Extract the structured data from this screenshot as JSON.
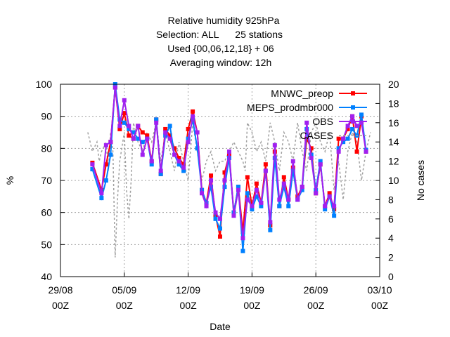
{
  "chart_data": {
    "type": "line",
    "title": [
      "Relative humidity 925hPa",
      "Selection: ALL      25 stations",
      "Used {00,06,12,18} + 06",
      "Averaging window: 12h"
    ],
    "xlabel": "Date",
    "ylabel": "%",
    "y2label": "No cases",
    "ylim": [
      40,
      100
    ],
    "y2lim": [
      0,
      20
    ],
    "xlim": [
      "2023-08-29T00:00",
      "2023-10-03T00:00"
    ],
    "x_ticks": [
      {
        "date": "2023-08-29T00:00",
        "line1": "29/08",
        "line2": "00Z"
      },
      {
        "date": "2023-09-05T00:00",
        "line1": "05/09",
        "line2": "00Z"
      },
      {
        "date": "2023-09-12T00:00",
        "line1": "12/09",
        "line2": "00Z"
      },
      {
        "date": "2023-09-19T00:00",
        "line1": "19/09",
        "line2": "00Z"
      },
      {
        "date": "2023-09-26T00:00",
        "line1": "26/09",
        "line2": "00Z"
      },
      {
        "date": "2023-10-03T00:00",
        "line1": "03/10",
        "line2": "00Z"
      }
    ],
    "y_ticks": [
      40,
      50,
      60,
      70,
      80,
      90,
      100
    ],
    "y2_ticks": [
      0,
      2,
      4,
      6,
      8,
      10,
      12,
      14,
      16,
      18,
      20
    ],
    "grid": true,
    "legend_position": "top-right",
    "series": [
      {
        "name": "MNWC_preop",
        "color": "#ff0000",
        "marker": "square",
        "axis": "y",
        "x": [
          "2023-09-01T12:00",
          "2023-09-02T12:00",
          "2023-09-03T00:00",
          "2023-09-03T12:00",
          "2023-09-04T00:00",
          "2023-09-04T12:00",
          "2023-09-05T00:00",
          "2023-09-05T12:00",
          "2023-09-06T00:00",
          "2023-09-06T12:00",
          "2023-09-07T00:00",
          "2023-09-07T12:00",
          "2023-09-08T00:00",
          "2023-09-08T12:00",
          "2023-09-09T00:00",
          "2023-09-09T12:00",
          "2023-09-10T00:00",
          "2023-09-10T12:00",
          "2023-09-11T00:00",
          "2023-09-11T12:00",
          "2023-09-12T00:00",
          "2023-09-12T12:00",
          "2023-09-13T00:00",
          "2023-09-13T12:00",
          "2023-09-14T00:00",
          "2023-09-14T12:00",
          "2023-09-15T00:00",
          "2023-09-15T12:00",
          "2023-09-16T00:00",
          "2023-09-16T12:00",
          "2023-09-17T00:00",
          "2023-09-17T12:00",
          "2023-09-18T00:00",
          "2023-09-18T12:00",
          "2023-09-19T00:00",
          "2023-09-19T12:00",
          "2023-09-20T00:00",
          "2023-09-20T12:00",
          "2023-09-21T00:00",
          "2023-09-21T12:00",
          "2023-09-22T00:00",
          "2023-09-22T12:00",
          "2023-09-23T00:00",
          "2023-09-23T12:00",
          "2023-09-24T00:00",
          "2023-09-24T12:00",
          "2023-09-25T00:00",
          "2023-09-25T12:00",
          "2023-09-26T00:00",
          "2023-09-26T12:00",
          "2023-09-27T00:00",
          "2023-09-27T12:00",
          "2023-09-28T00:00",
          "2023-09-28T12:00",
          "2023-09-29T00:00",
          "2023-09-29T12:00",
          "2023-09-30T00:00",
          "2023-09-30T12:00",
          "2023-10-01T00:00",
          "2023-10-01T12:00"
        ],
        "y": [
          75.5,
          67,
          75,
          82,
          99,
          86,
          91,
          84,
          83,
          87,
          85,
          84,
          76,
          89,
          72,
          86,
          84,
          80,
          77,
          75,
          86,
          91.5,
          85,
          67,
          63,
          71.5,
          59,
          52.5,
          72.5,
          78,
          60,
          68,
          54,
          71,
          62,
          69,
          63,
          75,
          56,
          79,
          62,
          71,
          64,
          74,
          65,
          68,
          83,
          80,
          66,
          75,
          62,
          66,
          61,
          83,
          83,
          86,
          90,
          79,
          90,
          79
        ]
      },
      {
        "name": "MEPS_prodmbr000",
        "color": "#0080ff",
        "marker": "square",
        "axis": "y",
        "x": [
          "2023-09-01T12:00",
          "2023-09-02T12:00",
          "2023-09-03T00:00",
          "2023-09-03T12:00",
          "2023-09-04T00:00",
          "2023-09-04T12:00",
          "2023-09-05T00:00",
          "2023-09-05T12:00",
          "2023-09-06T00:00",
          "2023-09-06T12:00",
          "2023-09-07T00:00",
          "2023-09-07T12:00",
          "2023-09-08T00:00",
          "2023-09-08T12:00",
          "2023-09-09T00:00",
          "2023-09-09T12:00",
          "2023-09-10T00:00",
          "2023-09-10T12:00",
          "2023-09-11T00:00",
          "2023-09-11T12:00",
          "2023-09-12T00:00",
          "2023-09-12T12:00",
          "2023-09-13T00:00",
          "2023-09-13T12:00",
          "2023-09-14T00:00",
          "2023-09-14T12:00",
          "2023-09-15T00:00",
          "2023-09-15T12:00",
          "2023-09-16T00:00",
          "2023-09-16T12:00",
          "2023-09-17T00:00",
          "2023-09-17T12:00",
          "2023-09-18T00:00",
          "2023-09-18T12:00",
          "2023-09-19T00:00",
          "2023-09-19T12:00",
          "2023-09-20T00:00",
          "2023-09-20T12:00",
          "2023-09-21T00:00",
          "2023-09-21T12:00",
          "2023-09-22T00:00",
          "2023-09-22T12:00",
          "2023-09-23T00:00",
          "2023-09-23T12:00",
          "2023-09-24T00:00",
          "2023-09-24T12:00",
          "2023-09-25T00:00",
          "2023-09-25T12:00",
          "2023-09-26T00:00",
          "2023-09-26T12:00",
          "2023-09-27T00:00",
          "2023-09-27T12:00",
          "2023-09-28T00:00",
          "2023-09-28T12:00",
          "2023-09-29T00:00",
          "2023-09-29T12:00",
          "2023-09-30T00:00",
          "2023-09-30T12:00",
          "2023-10-01T00:00",
          "2023-10-01T12:00"
        ],
        "y": [
          73.5,
          64.5,
          70,
          78,
          100,
          89,
          88,
          86,
          85,
          83,
          82,
          83,
          75,
          89,
          72,
          84,
          87,
          78,
          75,
          73,
          83,
          89,
          80,
          67,
          63,
          68,
          58,
          55,
          68,
          77,
          60,
          68,
          48,
          66,
          61,
          65,
          62,
          73,
          54.5,
          77,
          62,
          68,
          62,
          73,
          64,
          67,
          86,
          78,
          67,
          76,
          61,
          65,
          59,
          80,
          82,
          83,
          86,
          84,
          90.5,
          79.5
        ]
      },
      {
        "name": "OBS",
        "color": "#a020f0",
        "marker": "square",
        "axis": "y",
        "x": [
          "2023-09-01T12:00",
          "2023-09-02T12:00",
          "2023-09-03T00:00",
          "2023-09-03T12:00",
          "2023-09-04T00:00",
          "2023-09-04T12:00",
          "2023-09-05T00:00",
          "2023-09-05T12:00",
          "2023-09-06T00:00",
          "2023-09-06T12:00",
          "2023-09-07T00:00",
          "2023-09-07T12:00",
          "2023-09-08T00:00",
          "2023-09-08T12:00",
          "2023-09-09T00:00",
          "2023-09-09T12:00",
          "2023-09-10T00:00",
          "2023-09-10T12:00",
          "2023-09-11T00:00",
          "2023-09-11T12:00",
          "2023-09-12T00:00",
          "2023-09-12T12:00",
          "2023-09-13T00:00",
          "2023-09-13T12:00",
          "2023-09-14T00:00",
          "2023-09-14T12:00",
          "2023-09-15T00:00",
          "2023-09-15T12:00",
          "2023-09-16T00:00",
          "2023-09-16T12:00",
          "2023-09-17T00:00",
          "2023-09-17T12:00",
          "2023-09-18T00:00",
          "2023-09-18T12:00",
          "2023-09-19T00:00",
          "2023-09-19T12:00",
          "2023-09-20T00:00",
          "2023-09-20T12:00",
          "2023-09-21T00:00",
          "2023-09-21T12:00",
          "2023-09-22T00:00",
          "2023-09-22T12:00",
          "2023-09-23T00:00",
          "2023-09-23T12:00",
          "2023-09-24T00:00",
          "2023-09-24T12:00",
          "2023-09-25T00:00",
          "2023-09-25T12:00",
          "2023-09-26T00:00",
          "2023-09-26T12:00",
          "2023-09-27T00:00",
          "2023-09-27T12:00",
          "2023-09-28T00:00",
          "2023-09-28T12:00",
          "2023-09-29T00:00",
          "2023-09-29T12:00",
          "2023-09-30T00:00",
          "2023-09-30T12:00",
          "2023-10-01T00:00",
          "2023-10-01T12:00"
        ],
        "y": [
          75,
          66,
          81,
          82,
          99,
          87,
          95,
          87,
          83,
          87,
          78,
          83,
          76,
          88,
          73,
          85,
          83,
          78,
          76,
          74,
          82,
          90,
          85,
          66,
          62,
          70,
          60,
          58,
          70,
          79,
          59,
          67,
          52,
          64,
          62,
          67,
          63,
          73,
          57,
          81,
          64,
          69,
          64,
          76,
          64,
          68,
          88,
          77,
          66,
          75,
          62,
          65,
          62,
          79,
          83,
          87,
          90,
          87,
          88,
          79
        ]
      },
      {
        "name": "CASES",
        "color": "#a0a0a0",
        "dash": true,
        "axis": "y2",
        "x": [
          "2023-09-01T00:00",
          "2023-09-01T12:00",
          "2023-09-02T00:00",
          "2023-09-02T06:00",
          "2023-09-02T12:00",
          "2023-09-03T00:00",
          "2023-09-03T06:00",
          "2023-09-03T12:00",
          "2023-09-03T18:00",
          "2023-09-04T00:00",
          "2023-09-04T06:00",
          "2023-09-04T12:00",
          "2023-09-05T00:00",
          "2023-09-05T06:00",
          "2023-09-05T12:00",
          "2023-09-05T18:00",
          "2023-09-06T00:00",
          "2023-09-06T12:00",
          "2023-09-07T00:00",
          "2023-09-07T12:00",
          "2023-09-08T00:00",
          "2023-09-08T12:00",
          "2023-09-09T00:00",
          "2023-09-09T12:00",
          "2023-09-10T00:00",
          "2023-09-10T12:00",
          "2023-09-11T00:00",
          "2023-09-11T12:00",
          "2023-09-12T00:00",
          "2023-09-12T12:00",
          "2023-09-13T00:00",
          "2023-09-13T12:00",
          "2023-09-14T00:00",
          "2023-09-14T12:00",
          "2023-09-15T00:00",
          "2023-09-15T12:00",
          "2023-09-16T00:00",
          "2023-09-16T12:00",
          "2023-09-17T00:00",
          "2023-09-17T12:00",
          "2023-09-18T00:00",
          "2023-09-18T06:00",
          "2023-09-18T12:00",
          "2023-09-19T00:00",
          "2023-09-19T12:00",
          "2023-09-20T00:00",
          "2023-09-20T12:00",
          "2023-09-21T00:00",
          "2023-09-21T12:00",
          "2023-09-22T00:00",
          "2023-09-22T12:00",
          "2023-09-23T00:00",
          "2023-09-23T12:00",
          "2023-09-24T00:00",
          "2023-09-24T12:00",
          "2023-09-25T00:00",
          "2023-09-25T12:00",
          "2023-09-26T00:00",
          "2023-09-26T12:00",
          "2023-09-27T00:00",
          "2023-09-27T12:00",
          "2023-09-28T00:00",
          "2023-09-28T12:00",
          "2023-09-29T00:00",
          "2023-09-29T12:00",
          "2023-09-30T00:00",
          "2023-09-30T12:00",
          "2023-10-01T00:00",
          "2023-10-01T12:00",
          "2023-10-02T00:00"
        ],
        "y": [
          15,
          13,
          14,
          12,
          13,
          14,
          11,
          15,
          13,
          2,
          8,
          12,
          15,
          9,
          6,
          10,
          16,
          14,
          13,
          15,
          14,
          16,
          12,
          15,
          13,
          11,
          14,
          12,
          10,
          16,
          13,
          10,
          12,
          13,
          11,
          12,
          12,
          13,
          14,
          13,
          12,
          11,
          16,
          15,
          13,
          14,
          12,
          16,
          14,
          11,
          15,
          14,
          12,
          16,
          13,
          11,
          15,
          16,
          14,
          13,
          15,
          9,
          12,
          8,
          13,
          15,
          14,
          10,
          13,
          15
        ]
      }
    ]
  }
}
